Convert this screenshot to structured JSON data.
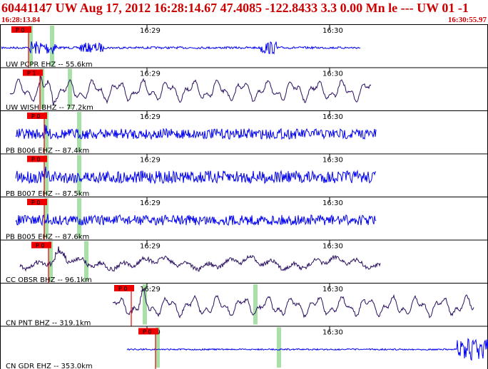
{
  "header": {
    "title": "60441147 UW Aug 17, 2012 16:28:14.67    47.4085 -122.8433  3.3 0.00 Mn le --- UW 01  -1",
    "time_start": "16:28:13.84",
    "time_end": "16:30:55.97"
  },
  "colors": {
    "header_text": "#cc0000",
    "trace_blue": "#0000ee",
    "trace_purple": "#2a1060",
    "pick_box": "#ee0000",
    "arrival_band": "#a8e0a8",
    "grid": "#000000"
  },
  "time_axis": {
    "tick_labels": [
      "16:29",
      "16:30"
    ]
  },
  "stations": [
    {
      "label": "UW PCPR EHZ -- 55.6km",
      "pick": "P 0",
      "color": "blue"
    },
    {
      "label": "UW WISH BHZ -- 77.2km",
      "pick": "P 1",
      "color": "purple"
    },
    {
      "label": "PB B006 EHZ -- 87.4km",
      "pick": "P 0",
      "color": "blue"
    },
    {
      "label": "PB B007 EHZ -- 87.5km",
      "pick": "P 0",
      "color": "blue"
    },
    {
      "label": "PB B005 EHZ -- 87.6km",
      "pick": "P 0",
      "color": "blue"
    },
    {
      "label": "CC OBSR BHZ -- 96.1km",
      "pick": "P 0",
      "color": "purple"
    },
    {
      "label": "CN PNT BHZ -- 319.1km",
      "pick": "P 0",
      "color": "purple"
    },
    {
      "label": "CN GDR EHZ -- 353.0km",
      "pick": "P 0",
      "color": "blue"
    }
  ]
}
